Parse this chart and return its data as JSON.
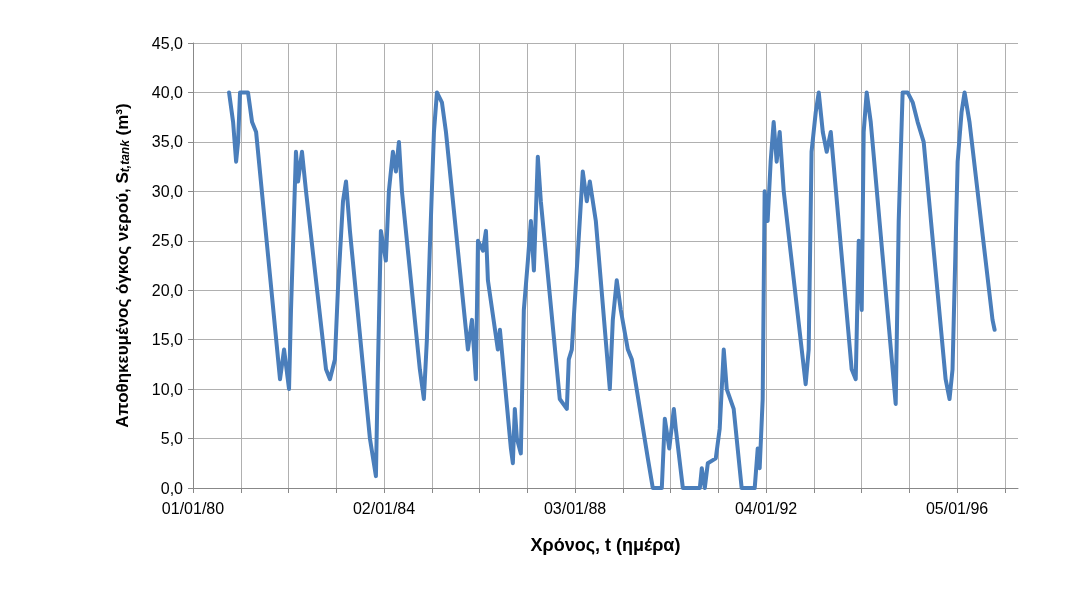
{
  "chart_data": {
    "type": "line",
    "xlabel": "Χρόνος, t (ημέρα)",
    "ylabel": "Αποθηκευμένος όγκος νερού, S$_{t,tank}$ (m³)",
    "x": [
      "1980-10-03",
      "1980-11-03",
      "1980-11-26",
      "1980-12-11",
      "1980-12-26",
      "1981-02-25",
      "1981-03-28",
      "1981-04-28",
      "1981-10-28",
      "1981-11-28",
      "1982-01-05",
      "1982-01-20",
      "1982-02-27",
      "1982-03-15",
      "1982-04-14",
      "1982-05-15",
      "1982-10-15",
      "1982-11-14",
      "1982-12-22",
      "1983-01-14",
      "1983-02-22",
      "1983-03-17",
      "1983-04-16",
      "1983-09-16",
      "1983-11-01",
      "1983-11-16",
      "1983-12-09",
      "1984-01-16",
      "1984-02-08",
      "1984-03-10",
      "1984-04-02",
      "1984-04-25",
      "1984-05-18",
      "1984-10-02",
      "1984-11-02",
      "1984-11-25",
      "1984-12-17",
      "1985-01-18",
      "1985-02-10",
      "1985-03-20",
      "1985-04-20",
      "1985-10-05",
      "1985-11-05",
      "1985-12-05",
      "1985-12-21",
      "1986-01-28",
      "1986-02-20",
      "1986-03-07",
      "1986-05-22",
      "1986-06-07",
      "1986-08-30",
      "1986-09-14",
      "1986-09-29",
      "1986-10-15",
      "1986-11-14",
      "1986-12-07",
      "1987-01-07",
      "1987-01-30",
      "1987-02-22",
      "1987-03-24",
      "1987-04-16",
      "1987-09-08",
      "1987-11-01",
      "1987-11-16",
      "1987-12-09",
      "1988-01-16",
      "1988-03-02",
      "1988-04-02",
      "1988-04-25",
      "1988-06-10",
      "1988-09-25",
      "1988-10-18",
      "1988-11-17",
      "1988-12-18",
      "1989-02-10",
      "1989-03-13",
      "1989-07-13",
      "1989-08-20",
      "1989-10-28",
      "1989-11-20",
      "1989-12-24",
      "1990-01-28",
      "1990-02-12",
      "1990-04-07",
      "1990-08-15",
      "1990-08-30",
      "1990-09-22",
      "1990-10-15",
      "1990-12-15",
      "1991-01-14",
      "1991-02-14",
      "1991-03-09",
      "1991-05-01",
      "1991-07-01",
      "1991-10-09",
      "1991-11-01",
      "1991-11-16",
      "1991-12-09",
      "1991-12-24",
      "1992-01-16",
      "1992-02-08",
      "1992-03-02",
      "1992-03-25",
      "1992-04-17",
      "1992-05-18",
      "1992-11-02",
      "1992-11-25",
      "1992-12-17",
      "1993-01-18",
      "1993-02-10",
      "1993-03-13",
      "1993-04-12",
      "1993-05-13",
      "1993-10-20",
      "1993-11-20",
      "1993-12-13",
      "1994-01-05",
      "1994-01-20",
      "1994-02-12",
      "1994-03-15",
      "1994-09-22",
      "1994-10-15",
      "1994-11-14",
      "1994-12-22",
      "1995-01-30",
      "1995-03-09",
      "1995-04-24",
      "1995-10-09",
      "1995-11-08",
      "1995-12-01",
      "1996-01-09",
      "1996-02-08",
      "1996-03-02",
      "1996-04-09",
      "1996-10-02",
      "1996-10-18"
    ],
    "series": [
      {
        "color": "#4a7ebb",
        "values": [
          40,
          37,
          33,
          35,
          40,
          40,
          37,
          36,
          11,
          14,
          10,
          18,
          34,
          31,
          34,
          30,
          12,
          11,
          13,
          20,
          29,
          31,
          26,
          5,
          1.2,
          12,
          26,
          23,
          30,
          34,
          32,
          35,
          30,
          12,
          9,
          15,
          24,
          36,
          40,
          39,
          36,
          14,
          17,
          11,
          25,
          24,
          26,
          21,
          14,
          16,
          4,
          2.5,
          8,
          5,
          3.5,
          18,
          23,
          27,
          22,
          33.5,
          29,
          9,
          8,
          13,
          14,
          22,
          32,
          29,
          31,
          27,
          10,
          17,
          21,
          18,
          14,
          13,
          3,
          0,
          0,
          7,
          4,
          8,
          6,
          0,
          0,
          2,
          0,
          2.5,
          3,
          6,
          14,
          10,
          8,
          0,
          0,
          4,
          2,
          9,
          30,
          27,
          33,
          37,
          33,
          36,
          30,
          10.5,
          14,
          34,
          38,
          40,
          36,
          34,
          36,
          12,
          11,
          25,
          18,
          36,
          40,
          37,
          8.5,
          27,
          40,
          40,
          39,
          37,
          35,
          11,
          9,
          12,
          33,
          38,
          40,
          37,
          17,
          16
        ]
      }
    ],
    "xlim": [
      "1980-01-01",
      "1997-04-15"
    ],
    "xticks": [
      {
        "value": "1980-01-01",
        "label": "01/01/80"
      },
      {
        "value": "1981-01-01",
        "label": null
      },
      {
        "value": "1982-01-01",
        "label": null
      },
      {
        "value": "1983-01-02",
        "label": null
      },
      {
        "value": "1984-01-02",
        "label": "02/01/84"
      },
      {
        "value": "1985-01-02",
        "label": null
      },
      {
        "value": "1986-01-02",
        "label": null
      },
      {
        "value": "1987-01-03",
        "label": null
      },
      {
        "value": "1988-01-03",
        "label": "03/01/88"
      },
      {
        "value": "1989-01-03",
        "label": null
      },
      {
        "value": "1990-01-03",
        "label": null
      },
      {
        "value": "1991-01-04",
        "label": null
      },
      {
        "value": "1992-01-04",
        "label": "04/01/92"
      },
      {
        "value": "1993-01-04",
        "label": null
      },
      {
        "value": "1994-01-04",
        "label": null
      },
      {
        "value": "1995-01-05",
        "label": null
      },
      {
        "value": "1996-01-05",
        "label": "05/01/96"
      },
      {
        "value": "1997-01-05",
        "label": null
      }
    ],
    "ylim": [
      0,
      45
    ],
    "yticks": [
      {
        "value": 0,
        "label": "0,0"
      },
      {
        "value": 5,
        "label": "5,0"
      },
      {
        "value": 10,
        "label": "10,0"
      },
      {
        "value": 15,
        "label": "15,0"
      },
      {
        "value": 20,
        "label": "20,0"
      },
      {
        "value": 25,
        "label": "25,0"
      },
      {
        "value": 30,
        "label": "30,0"
      },
      {
        "value": 35,
        "label": "35,0"
      },
      {
        "value": 40,
        "label": "40,0"
      },
      {
        "value": 45,
        "label": "45,0"
      }
    ],
    "grid": true,
    "marker": "none",
    "line_style": "solid"
  }
}
